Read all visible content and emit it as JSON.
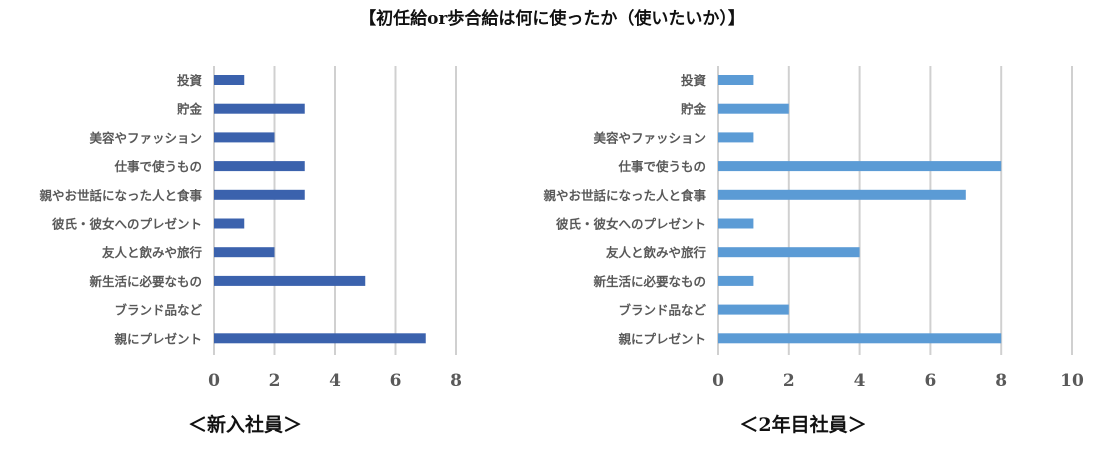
{
  "title": "【初任給or歩合給は何に使ったか（使いたいか）】",
  "chart_data": [
    {
      "type": "bar",
      "orientation": "horizontal",
      "title": "＜新入社員＞",
      "categories": [
        "投資",
        "貯金",
        "美容やファッション",
        "仕事で使うもの",
        "親やお世話になった人と食事",
        "彼氏・彼女へのプレゼント",
        "友人と飲みや旅行",
        "新生活に必要なもの",
        "ブランド品など",
        "親にプレゼント"
      ],
      "values": [
        1,
        3,
        2,
        3,
        3,
        1,
        2,
        5,
        0,
        7
      ],
      "xlim": [
        0,
        8
      ],
      "xticks": [
        0,
        2,
        4,
        6,
        8
      ],
      "grid": true,
      "color": "#3b62ad"
    },
    {
      "type": "bar",
      "orientation": "horizontal",
      "title": "＜2年目社員＞",
      "categories": [
        "投資",
        "貯金",
        "美容やファッション",
        "仕事で使うもの",
        "親やお世話になった人と食事",
        "彼氏・彼女へのプレゼント",
        "友人と飲みや旅行",
        "新生活に必要なもの",
        "ブランド品など",
        "親にプレゼント"
      ],
      "values": [
        1,
        2,
        1,
        8,
        7,
        1,
        4,
        1,
        2,
        8
      ],
      "xlim": [
        0,
        10
      ],
      "xticks": [
        0,
        2,
        4,
        6,
        8,
        10
      ],
      "grid": true,
      "color": "#5b9bd5"
    }
  ]
}
